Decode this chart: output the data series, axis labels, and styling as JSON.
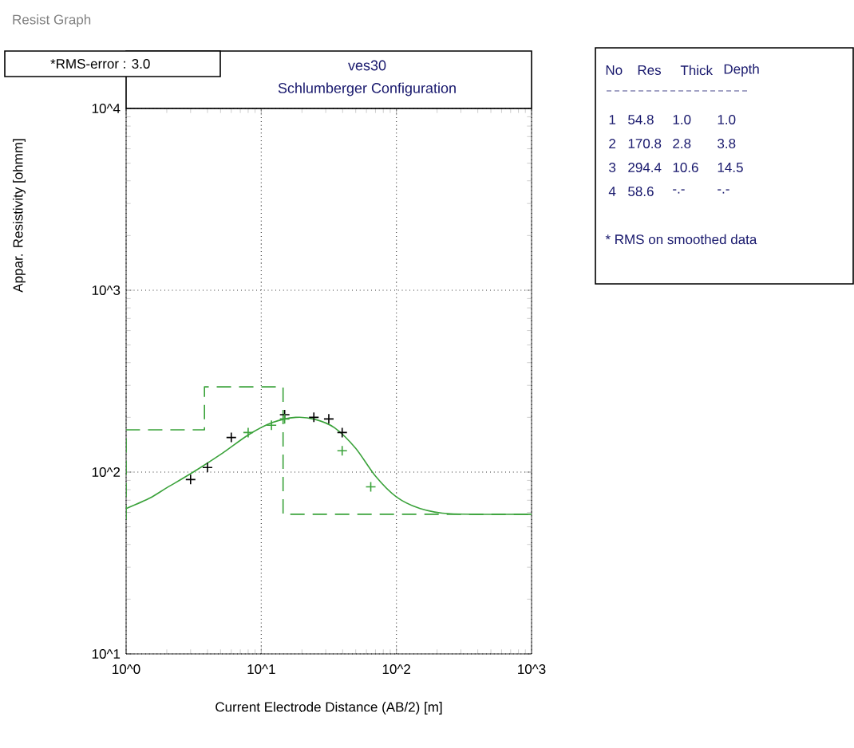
{
  "chart_data": {
    "type": "line",
    "title": "ves30",
    "subtitle": "Schlumberger Configuration",
    "xlabel": "Current Electrode Distance (AB/2) [m]",
    "ylabel": "Appar. Resistivity [ohmm]",
    "log": "xy",
    "grid": true,
    "xlim": [
      1,
      1000
    ],
    "ylim": [
      10,
      10000
    ],
    "xticks": [
      {
        "value": 1,
        "label": "10^0"
      },
      {
        "value": 10,
        "label": "10^1"
      },
      {
        "value": 100,
        "label": "10^2"
      },
      {
        "value": 1000,
        "label": "10^3"
      }
    ],
    "yticks": [
      {
        "value": 10,
        "label": "10^1"
      },
      {
        "value": 100,
        "label": "10^2"
      },
      {
        "value": 1000,
        "label": "10^3"
      },
      {
        "value": 10000,
        "label": "10^4"
      }
    ],
    "series": [
      {
        "type": "step",
        "color": "#3aa23a",
        "line_style": "dashed",
        "x": [
          1,
          1,
          3.8,
          14.5,
          1000
        ],
        "values": [
          54.8,
          170.8,
          294.4,
          58.6,
          58.6
        ]
      },
      {
        "color": "#3aa23a",
        "line_style": "solid",
        "x": [
          1,
          1.5,
          2,
          3,
          5,
          8,
          12,
          18,
          25,
          35,
          50,
          70,
          100,
          150,
          250,
          1000
        ],
        "values": [
          63,
          72,
          82,
          98,
          125,
          160,
          187,
          200,
          195,
          175,
          135,
          95,
          73,
          63,
          59,
          58.6
        ]
      },
      {
        "type": "scatter",
        "color": "#000000",
        "marker": "cross",
        "x": [
          3.0,
          4.0,
          6.0,
          14.9,
          24.5,
          31.6,
          39.7
        ],
        "values": [
          91,
          106,
          155,
          207,
          200,
          196,
          165
        ]
      },
      {
        "type": "scatter",
        "color": "#3aa23a",
        "marker": "cross",
        "x": [
          8.0,
          11.9,
          14.9,
          39.7,
          64.6
        ],
        "values": [
          165,
          181,
          196,
          131,
          83
        ]
      }
    ],
    "annotations": [
      "Resist Graph",
      "*RMS-error :  3.0",
      "No",
      "Res",
      "Thick",
      "Depth",
      "1",
      "54.8",
      "1.0",
      "1.0",
      "2",
      "170.8",
      "2.8",
      "3.8",
      "3",
      "294.4",
      "10.6",
      "14.5",
      "4",
      "58.6",
      "-.-",
      "-.-",
      "* RMS on smoothed data"
    ]
  }
}
